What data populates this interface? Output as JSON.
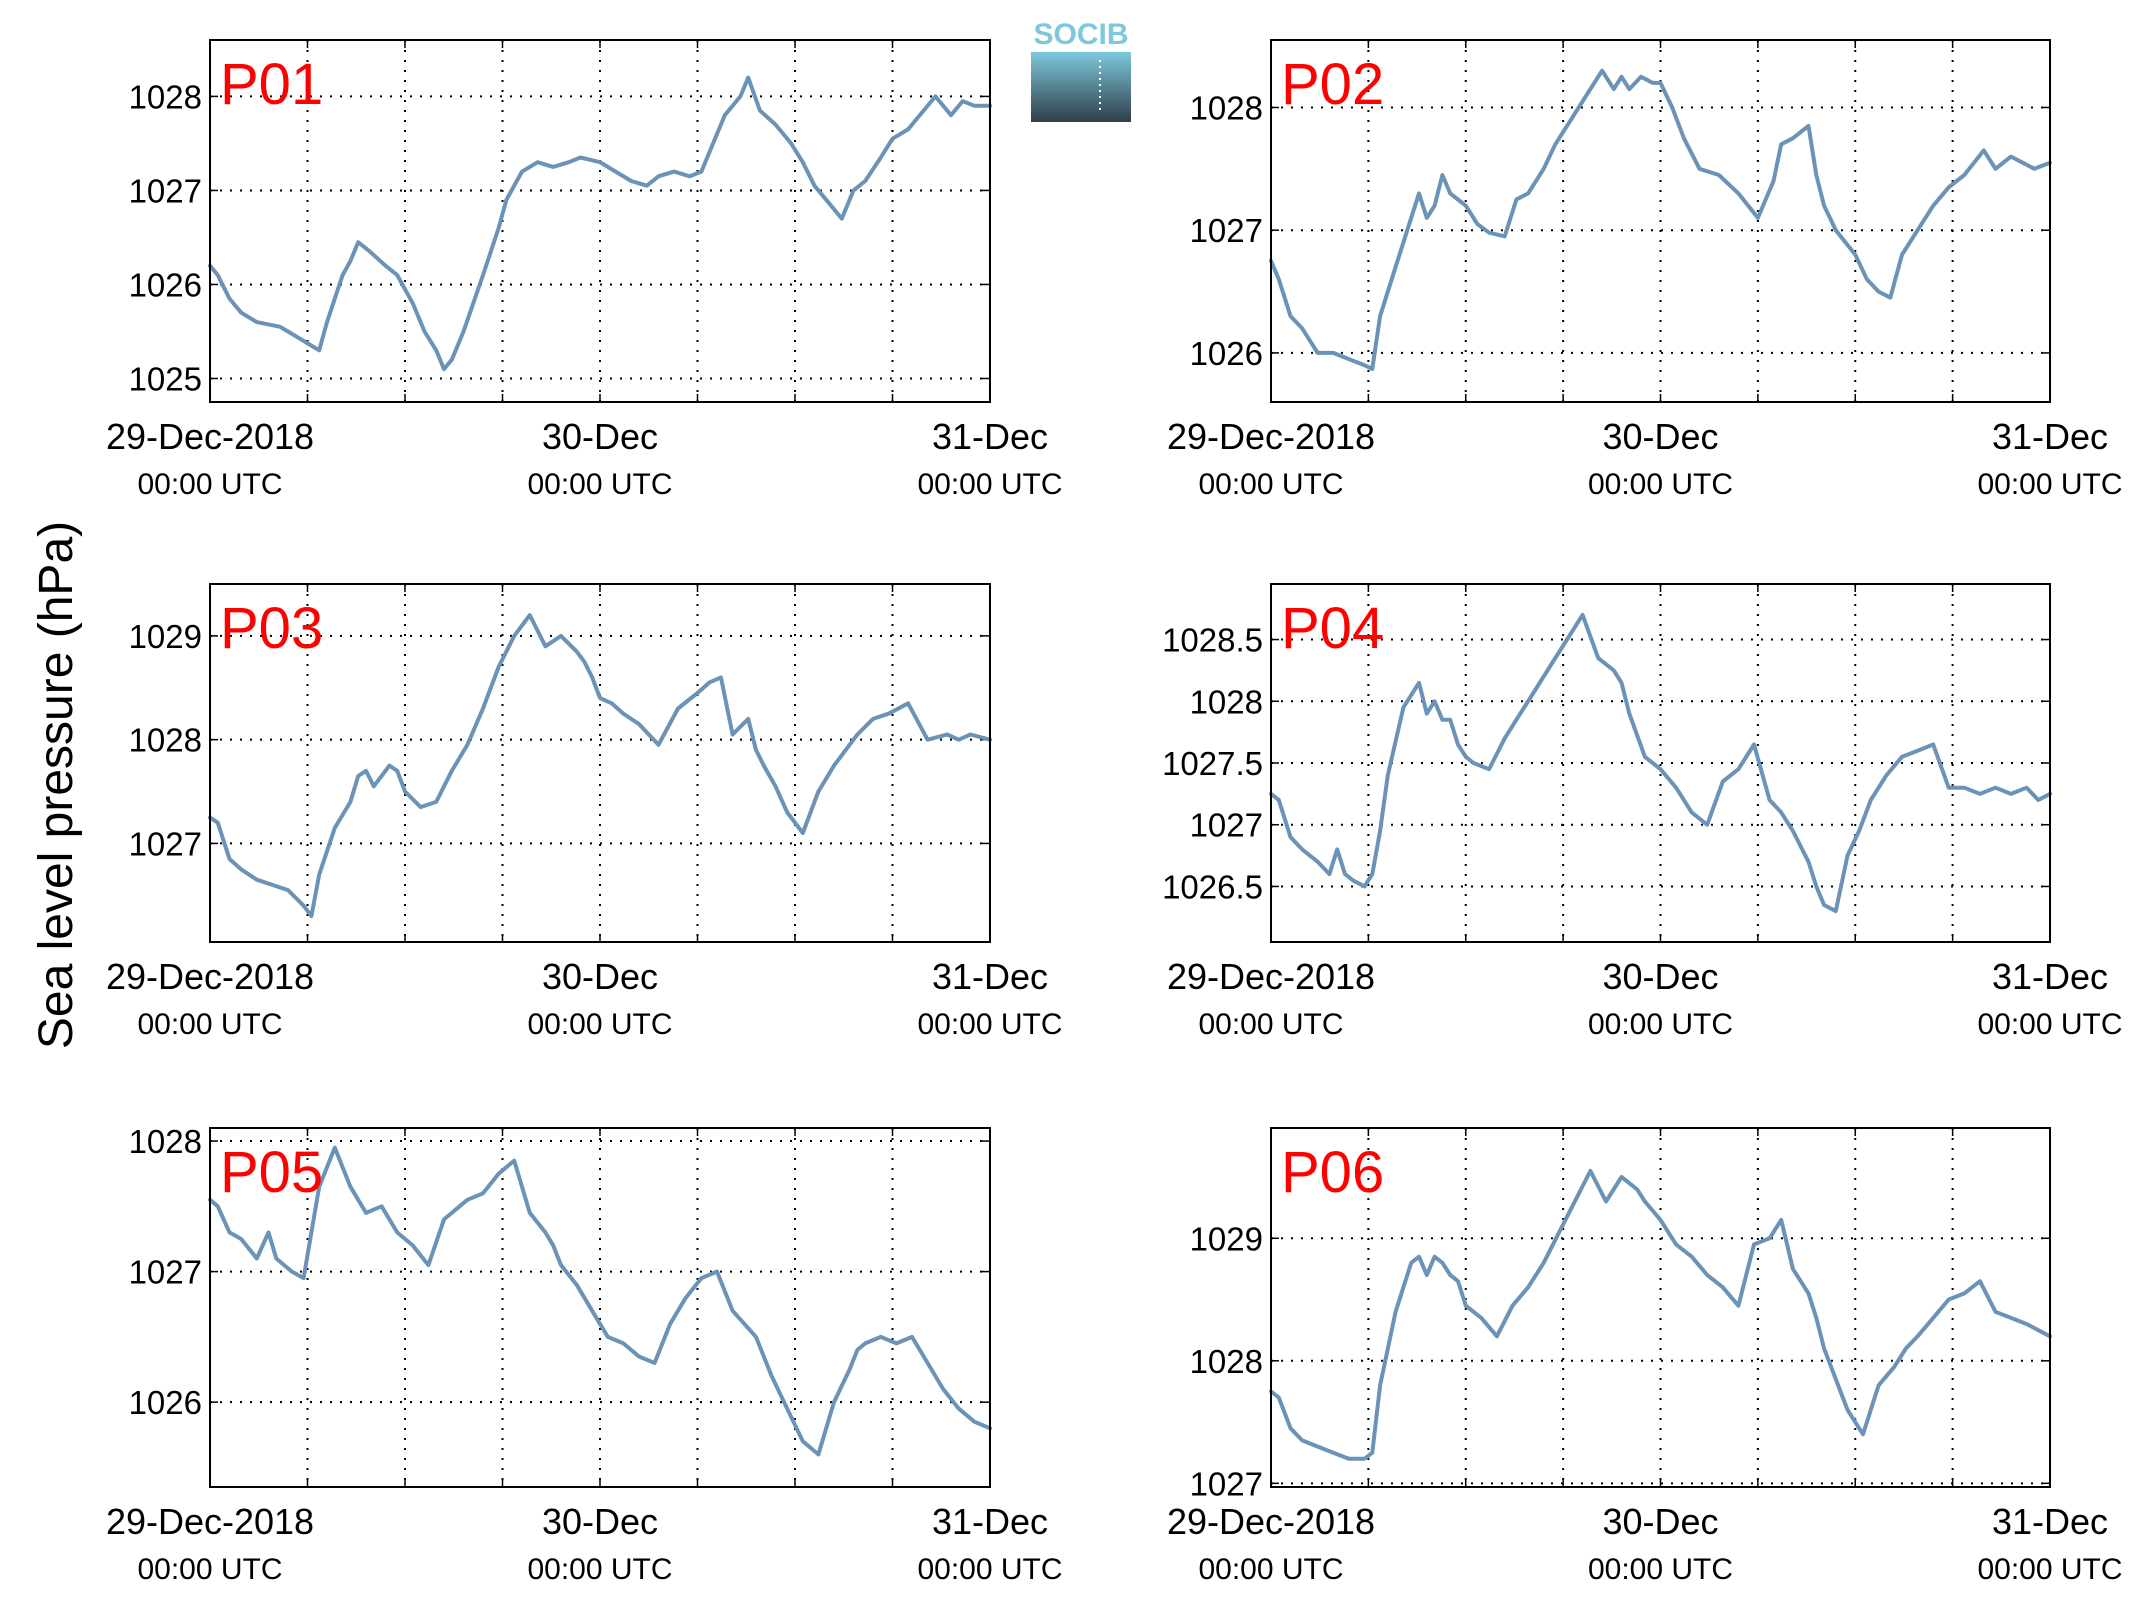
{
  "figure": {
    "ylabel": "Sea level pressure (hPa)",
    "logo_text": "SOCIB"
  },
  "colors": {
    "series": "#6b93b8",
    "panel_label": "#ff0000",
    "grid": "#000000",
    "logo_top": "#7ec8dc",
    "logo_bottom": "#2e3e48"
  },
  "x_ticks": [
    {
      "pos": 0,
      "date": "29-Dec-2018",
      "time": "00:00 UTC"
    },
    {
      "pos": 1,
      "date": "30-Dec",
      "time": "00:00 UTC"
    },
    {
      "pos": 2,
      "date": "31-Dec",
      "time": "00:00 UTC"
    }
  ],
  "chart_data": [
    {
      "type": "line",
      "title": "P01",
      "xlabel": "",
      "ylabel": "Sea level pressure (hPa)",
      "x_unit": "days since 29-Dec-2018 00:00 UTC",
      "xlim": [
        0,
        2
      ],
      "ylim": [
        1024.75,
        1028.6
      ],
      "yticks": [
        1025,
        1026,
        1027,
        1028
      ],
      "ytick_labels": [
        "1025",
        "1026",
        "1027",
        "1028"
      ],
      "grid": true,
      "series": [
        {
          "x": [
            0,
            0.02,
            0.05,
            0.08,
            0.12,
            0.18,
            0.24,
            0.26,
            0.28,
            0.3,
            0.34,
            0.36,
            0.38,
            0.41,
            0.45,
            0.48,
            0.52,
            0.55,
            0.58,
            0.6,
            0.62,
            0.65,
            0.7,
            0.74,
            0.76,
            0.8,
            0.84,
            0.88,
            0.92,
            0.95,
            1.0,
            1.04,
            1.08,
            1.12,
            1.15,
            1.19,
            1.23,
            1.26,
            1.3,
            1.32,
            1.36,
            1.38,
            1.41,
            1.45,
            1.49,
            1.52,
            1.55,
            1.58,
            1.62,
            1.65,
            1.68,
            1.72,
            1.75,
            1.79,
            1.83,
            1.86,
            1.9,
            1.93,
            1.96,
            2.0
          ],
          "y": [
            1026.2,
            1026.1,
            1025.85,
            1025.7,
            1025.6,
            1025.55,
            1025.4,
            1025.35,
            1025.3,
            1025.6,
            1026.1,
            1026.25,
            1026.45,
            1026.35,
            1026.2,
            1026.1,
            1025.8,
            1025.5,
            1025.3,
            1025.1,
            1025.2,
            1025.5,
            1026.1,
            1026.6,
            1026.9,
            1027.2,
            1027.3,
            1027.25,
            1027.3,
            1027.35,
            1027.3,
            1027.2,
            1027.1,
            1027.05,
            1027.15,
            1027.2,
            1027.15,
            1027.2,
            1027.6,
            1027.8,
            1028.0,
            1028.2,
            1027.85,
            1027.7,
            1027.5,
            1027.3,
            1027.05,
            1026.9,
            1026.7,
            1027.0,
            1027.1,
            1027.35,
            1027.55,
            1027.65,
            1027.85,
            1028.0,
            1027.8,
            1027.95,
            1027.9,
            1027.9
          ]
        }
      ]
    },
    {
      "type": "line",
      "title": "P02",
      "xlabel": "",
      "ylabel": "Sea level pressure (hPa)",
      "x_unit": "days since 29-Dec-2018 00:00 UTC",
      "xlim": [
        0,
        2
      ],
      "ylim": [
        1025.6,
        1028.55
      ],
      "yticks": [
        1026,
        1027,
        1028
      ],
      "ytick_labels": [
        "1026",
        "1027",
        "1028"
      ],
      "grid": true,
      "series": [
        {
          "x": [
            0,
            0.02,
            0.05,
            0.08,
            0.12,
            0.16,
            0.2,
            0.24,
            0.26,
            0.28,
            0.32,
            0.36,
            0.38,
            0.4,
            0.42,
            0.44,
            0.46,
            0.48,
            0.5,
            0.53,
            0.56,
            0.6,
            0.63,
            0.66,
            0.7,
            0.73,
            0.77,
            0.81,
            0.85,
            0.88,
            0.9,
            0.92,
            0.95,
            0.98,
            1.0,
            1.03,
            1.06,
            1.1,
            1.15,
            1.2,
            1.25,
            1.29,
            1.31,
            1.34,
            1.38,
            1.4,
            1.42,
            1.45,
            1.5,
            1.53,
            1.56,
            1.59,
            1.62,
            1.65,
            1.7,
            1.74,
            1.78,
            1.83,
            1.86,
            1.9,
            1.93,
            1.96,
            2.0
          ],
          "y": [
            1026.75,
            1026.6,
            1026.3,
            1026.2,
            1026.0,
            1026.0,
            1025.95,
            1025.9,
            1025.87,
            1026.3,
            1026.7,
            1027.1,
            1027.3,
            1027.1,
            1027.2,
            1027.45,
            1027.3,
            1027.25,
            1027.2,
            1027.05,
            1026.98,
            1026.95,
            1027.25,
            1027.3,
            1027.5,
            1027.7,
            1027.9,
            1028.1,
            1028.3,
            1028.15,
            1028.25,
            1028.15,
            1028.25,
            1028.2,
            1028.2,
            1028.0,
            1027.75,
            1027.5,
            1027.45,
            1027.3,
            1027.1,
            1027.4,
            1027.7,
            1027.75,
            1027.85,
            1027.45,
            1027.2,
            1027.0,
            1026.8,
            1026.6,
            1026.5,
            1026.45,
            1026.8,
            1026.95,
            1027.2,
            1027.35,
            1027.45,
            1027.65,
            1027.5,
            1027.6,
            1027.55,
            1027.5,
            1027.55
          ]
        }
      ]
    },
    {
      "type": "line",
      "title": "P03",
      "xlabel": "",
      "ylabel": "Sea level pressure (hPa)",
      "x_unit": "days since 29-Dec-2018 00:00 UTC",
      "xlim": [
        0,
        2
      ],
      "ylim": [
        1026.05,
        1029.5
      ],
      "yticks": [
        1027,
        1028,
        1029
      ],
      "ytick_labels": [
        "1027",
        "1028",
        "1029"
      ],
      "grid": true,
      "series": [
        {
          "x": [
            0,
            0.02,
            0.05,
            0.08,
            0.12,
            0.16,
            0.2,
            0.24,
            0.26,
            0.28,
            0.32,
            0.36,
            0.38,
            0.4,
            0.42,
            0.44,
            0.46,
            0.48,
            0.5,
            0.54,
            0.58,
            0.62,
            0.66,
            0.7,
            0.74,
            0.78,
            0.82,
            0.86,
            0.9,
            0.94,
            0.96,
            0.98,
            1.0,
            1.03,
            1.06,
            1.1,
            1.15,
            1.2,
            1.25,
            1.28,
            1.31,
            1.34,
            1.38,
            1.4,
            1.42,
            1.45,
            1.48,
            1.52,
            1.56,
            1.6,
            1.64,
            1.66,
            1.7,
            1.74,
            1.79,
            1.84,
            1.89,
            1.92,
            1.95,
            2.0
          ],
          "y": [
            1027.25,
            1027.2,
            1026.85,
            1026.75,
            1026.65,
            1026.6,
            1026.55,
            1026.4,
            1026.3,
            1026.7,
            1027.15,
            1027.4,
            1027.65,
            1027.7,
            1027.55,
            1027.65,
            1027.75,
            1027.7,
            1027.5,
            1027.35,
            1027.4,
            1027.7,
            1027.95,
            1028.3,
            1028.7,
            1029.0,
            1029.2,
            1028.9,
            1029.0,
            1028.85,
            1028.75,
            1028.6,
            1028.4,
            1028.35,
            1028.25,
            1028.15,
            1027.95,
            1028.3,
            1028.45,
            1028.55,
            1028.6,
            1028.05,
            1028.2,
            1027.9,
            1027.75,
            1027.55,
            1027.3,
            1027.1,
            1027.5,
            1027.75,
            1027.95,
            1028.05,
            1028.2,
            1028.25,
            1028.35,
            1028.0,
            1028.05,
            1028.0,
            1028.05,
            1028.0
          ]
        }
      ]
    },
    {
      "type": "line",
      "title": "P04",
      "xlabel": "",
      "ylabel": "Sea level pressure (hPa)",
      "x_unit": "days since 29-Dec-2018 00:00 UTC",
      "xlim": [
        0,
        2
      ],
      "ylim": [
        1026.05,
        1028.95
      ],
      "yticks": [
        1026.5,
        1027,
        1027.5,
        1028,
        1028.5
      ],
      "ytick_labels": [
        "1026.5",
        "1027",
        "1027.5",
        "1028",
        "1028.5"
      ],
      "grid": true,
      "series": [
        {
          "x": [
            0,
            0.02,
            0.05,
            0.08,
            0.12,
            0.15,
            0.17,
            0.19,
            0.21,
            0.24,
            0.26,
            0.28,
            0.3,
            0.34,
            0.38,
            0.4,
            0.42,
            0.44,
            0.46,
            0.48,
            0.5,
            0.52,
            0.56,
            0.6,
            0.64,
            0.68,
            0.72,
            0.76,
            0.8,
            0.84,
            0.88,
            0.9,
            0.92,
            0.96,
            1.0,
            1.04,
            1.08,
            1.12,
            1.16,
            1.2,
            1.24,
            1.28,
            1.31,
            1.34,
            1.38,
            1.4,
            1.42,
            1.45,
            1.48,
            1.51,
            1.54,
            1.58,
            1.62,
            1.66,
            1.7,
            1.74,
            1.78,
            1.82,
            1.86,
            1.9,
            1.94,
            1.97,
            2.0
          ],
          "y": [
            1027.25,
            1027.2,
            1026.9,
            1026.8,
            1026.7,
            1026.6,
            1026.8,
            1026.6,
            1026.55,
            1026.5,
            1026.6,
            1026.95,
            1027.4,
            1027.95,
            1028.15,
            1027.9,
            1028.0,
            1027.85,
            1027.85,
            1027.65,
            1027.55,
            1027.5,
            1027.45,
            1027.7,
            1027.9,
            1028.1,
            1028.3,
            1028.5,
            1028.7,
            1028.35,
            1028.25,
            1028.15,
            1027.9,
            1027.55,
            1027.45,
            1027.3,
            1027.1,
            1027.0,
            1027.35,
            1027.45,
            1027.65,
            1027.2,
            1027.1,
            1026.95,
            1026.7,
            1026.5,
            1026.35,
            1026.3,
            1026.75,
            1026.95,
            1027.2,
            1027.4,
            1027.55,
            1027.6,
            1027.65,
            1027.3,
            1027.3,
            1027.25,
            1027.3,
            1027.25,
            1027.3,
            1027.2,
            1027.25
          ]
        }
      ]
    },
    {
      "type": "line",
      "title": "P05",
      "xlabel": "",
      "ylabel": "Sea level pressure (hPa)",
      "x_unit": "days since 29-Dec-2018 00:00 UTC",
      "xlim": [
        0,
        2
      ],
      "ylim": [
        1025.35,
        1028.1
      ],
      "yticks": [
        1026,
        1027,
        1028
      ],
      "ytick_labels": [
        "1026",
        "1027",
        "1028"
      ],
      "grid": true,
      "series": [
        {
          "x": [
            0,
            0.02,
            0.05,
            0.08,
            0.12,
            0.15,
            0.17,
            0.19,
            0.21,
            0.24,
            0.26,
            0.28,
            0.32,
            0.36,
            0.38,
            0.4,
            0.44,
            0.48,
            0.52,
            0.56,
            0.6,
            0.64,
            0.66,
            0.7,
            0.74,
            0.78,
            0.82,
            0.86,
            0.88,
            0.9,
            0.94,
            0.98,
            1.02,
            1.06,
            1.1,
            1.14,
            1.18,
            1.22,
            1.26,
            1.3,
            1.34,
            1.37,
            1.4,
            1.42,
            1.44,
            1.48,
            1.52,
            1.56,
            1.6,
            1.64,
            1.66,
            1.68,
            1.72,
            1.76,
            1.8,
            1.84,
            1.88,
            1.92,
            1.96,
            2.0
          ],
          "y": [
            1027.55,
            1027.5,
            1027.3,
            1027.25,
            1027.1,
            1027.3,
            1027.1,
            1027.05,
            1027.0,
            1026.95,
            1027.3,
            1027.65,
            1027.95,
            1027.65,
            1027.55,
            1027.45,
            1027.5,
            1027.3,
            1027.2,
            1027.05,
            1027.4,
            1027.5,
            1027.55,
            1027.6,
            1027.75,
            1027.85,
            1027.45,
            1027.3,
            1027.2,
            1027.05,
            1026.9,
            1026.7,
            1026.5,
            1026.45,
            1026.35,
            1026.3,
            1026.6,
            1026.8,
            1026.95,
            1027.0,
            1026.7,
            1026.6,
            1026.5,
            1026.35,
            1026.2,
            1025.95,
            1025.7,
            1025.6,
            1026.0,
            1026.25,
            1026.4,
            1026.45,
            1026.5,
            1026.45,
            1026.5,
            1026.3,
            1026.1,
            1025.95,
            1025.85,
            1025.8
          ]
        }
      ]
    },
    {
      "type": "line",
      "title": "P06",
      "xlabel": "",
      "ylabel": "Sea level pressure (hPa)",
      "x_unit": "days since 29-Dec-2018 00:00 UTC",
      "xlim": [
        0,
        2
      ],
      "ylim": [
        1026.97,
        1029.9
      ],
      "yticks": [
        1027,
        1028,
        1029
      ],
      "ytick_labels": [
        "1027",
        "1028",
        "1029"
      ],
      "grid": true,
      "series": [
        {
          "x": [
            0,
            0.02,
            0.05,
            0.08,
            0.12,
            0.16,
            0.2,
            0.24,
            0.26,
            0.28,
            0.32,
            0.36,
            0.38,
            0.4,
            0.42,
            0.44,
            0.46,
            0.48,
            0.5,
            0.54,
            0.58,
            0.62,
            0.66,
            0.7,
            0.74,
            0.78,
            0.82,
            0.86,
            0.9,
            0.94,
            0.96,
            1.0,
            1.04,
            1.08,
            1.12,
            1.16,
            1.2,
            1.24,
            1.28,
            1.31,
            1.34,
            1.38,
            1.4,
            1.42,
            1.45,
            1.48,
            1.52,
            1.56,
            1.6,
            1.63,
            1.66,
            1.7,
            1.74,
            1.78,
            1.82,
            1.86,
            1.9,
            1.94,
            1.97,
            2.0
          ],
          "y": [
            1027.75,
            1027.7,
            1027.45,
            1027.35,
            1027.3,
            1027.25,
            1027.2,
            1027.2,
            1027.25,
            1027.8,
            1028.4,
            1028.8,
            1028.85,
            1028.7,
            1028.85,
            1028.8,
            1028.7,
            1028.65,
            1028.45,
            1028.35,
            1028.2,
            1028.45,
            1028.6,
            1028.8,
            1029.05,
            1029.3,
            1029.55,
            1029.3,
            1029.5,
            1029.4,
            1029.3,
            1029.15,
            1028.95,
            1028.85,
            1028.7,
            1028.6,
            1028.45,
            1028.95,
            1029.0,
            1029.15,
            1028.75,
            1028.55,
            1028.35,
            1028.1,
            1027.85,
            1027.6,
            1027.4,
            1027.8,
            1027.95,
            1028.1,
            1028.2,
            1028.35,
            1028.5,
            1028.55,
            1028.65,
            1028.4,
            1028.35,
            1028.3,
            1028.25,
            1028.2
          ]
        }
      ]
    }
  ]
}
